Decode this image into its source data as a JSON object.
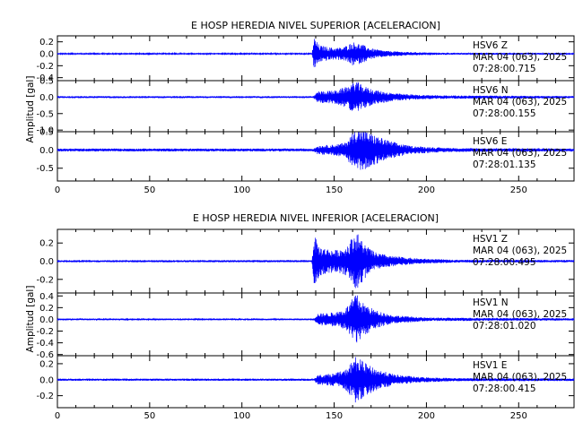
{
  "chart_data": [
    {
      "type": "line",
      "title": "E HOSP HEREDIA NIVEL SUPERIOR [ACELERACION]",
      "ylabel": "Amplitud [gal]",
      "xlabel": "",
      "xlim": [
        0,
        280
      ],
      "x_ticks": [
        0,
        50,
        100,
        150,
        200,
        250
      ],
      "grid": false,
      "color": "#0000ff",
      "series": [
        {
          "name": "HSV6 Z",
          "channel": "HSV6 Z",
          "date": "MAR 04 (063), 2025",
          "time": "07:28:00.715",
          "ylim": [
            -0.45,
            0.3
          ],
          "y_ticks": [
            0.2,
            0.0,
            -0.2,
            -0.4
          ],
          "y_tick_labels": [
            "0.2",
            "0.0",
            "-0.2",
            "-0.4"
          ],
          "noise": 0.012,
          "envelope": [
            [
              0,
              0.012
            ],
            [
              138,
              0.012
            ],
            [
              139,
              0.28
            ],
            [
              142,
              0.14
            ],
            [
              150,
              0.1
            ],
            [
              155,
              0.11
            ],
            [
              160,
              0.2
            ],
            [
              164,
              0.17
            ],
            [
              170,
              0.09
            ],
            [
              178,
              0.05
            ],
            [
              190,
              0.03
            ],
            [
              210,
              0.016
            ],
            [
              280,
              0.013
            ]
          ]
        },
        {
          "name": "HSV6 N",
          "channel": "HSV6 N",
          "date": "MAR 04 (063), 2025",
          "time": "07:28:00.155",
          "ylim": [
            -1.05,
            0.5
          ],
          "y_ticks": [
            0.5,
            0.0,
            -0.5,
            -1.0
          ],
          "y_tick_labels": [
            "0.5",
            "0.0",
            "-0.5",
            "-1.0"
          ],
          "noise": 0.03,
          "envelope": [
            [
              0,
              0.03
            ],
            [
              139,
              0.03
            ],
            [
              141,
              0.18
            ],
            [
              150,
              0.2
            ],
            [
              156,
              0.3
            ],
            [
              162,
              0.5
            ],
            [
              165,
              0.36
            ],
            [
              172,
              0.22
            ],
            [
              182,
              0.12
            ],
            [
              195,
              0.07
            ],
            [
              215,
              0.05
            ],
            [
              280,
              0.035
            ]
          ]
        },
        {
          "name": "HSV6 E",
          "channel": "HSV6 E",
          "date": "MAR 04 (063), 2025",
          "time": "07:28:01.135",
          "ylim": [
            -0.85,
            0.5
          ],
          "y_ticks": [
            0.5,
            0.0,
            -0.5
          ],
          "y_tick_labels": [
            "0.5",
            "0.0",
            "-0.5"
          ],
          "noise": 0.04,
          "envelope": [
            [
              0,
              0.04
            ],
            [
              139,
              0.04
            ],
            [
              141,
              0.12
            ],
            [
              150,
              0.15
            ],
            [
              156,
              0.2
            ],
            [
              162,
              0.6
            ],
            [
              166,
              0.55
            ],
            [
              172,
              0.4
            ],
            [
              180,
              0.25
            ],
            [
              190,
              0.12
            ],
            [
              205,
              0.07
            ],
            [
              220,
              0.05
            ],
            [
              280,
              0.045
            ]
          ]
        }
      ]
    },
    {
      "type": "line",
      "title": "E HOSP HEREDIA NIVEL INFERIOR [ACELERACION]",
      "ylabel": "Amplitud [gal]",
      "xlabel": "",
      "xlim": [
        0,
        280
      ],
      "x_ticks": [
        0,
        50,
        100,
        150,
        200,
        250
      ],
      "grid": false,
      "color": "#0000ff",
      "series": [
        {
          "name": "HSV1 Z",
          "channel": "HSV1 Z",
          "date": "MAR 04 (063), 2025",
          "time": "07:28:00.495",
          "ylim": [
            -0.35,
            0.35
          ],
          "y_ticks": [
            0.2,
            0.0,
            -0.2
          ],
          "y_tick_labels": [
            "0.2",
            "0.0",
            "-0.2"
          ],
          "noise": 0.012,
          "envelope": [
            [
              0,
              0.012
            ],
            [
              138,
              0.012
            ],
            [
              139,
              0.3
            ],
            [
              142,
              0.16
            ],
            [
              150,
              0.12
            ],
            [
              156,
              0.15
            ],
            [
              162,
              0.33
            ],
            [
              166,
              0.2
            ],
            [
              172,
              0.1
            ],
            [
              180,
              0.06
            ],
            [
              195,
              0.03
            ],
            [
              215,
              0.016
            ],
            [
              280,
              0.013
            ]
          ]
        },
        {
          "name": "HSV1 N",
          "channel": "HSV1 N",
          "date": "MAR 04 (063), 2025",
          "time": "07:28:01.020",
          "ylim": [
            -0.62,
            0.45
          ],
          "y_ticks": [
            0.4,
            0.2,
            0.0,
            -0.2,
            -0.4,
            -0.6
          ],
          "y_tick_labels": [
            "0.4",
            "0.2",
            "0.0",
            "-0.2",
            "-0.4",
            "-0.6"
          ],
          "noise": 0.015,
          "envelope": [
            [
              0,
              0.015
            ],
            [
              139,
              0.015
            ],
            [
              141,
              0.1
            ],
            [
              150,
              0.12
            ],
            [
              156,
              0.18
            ],
            [
              162,
              0.45
            ],
            [
              165,
              0.3
            ],
            [
              172,
              0.16
            ],
            [
              182,
              0.07
            ],
            [
              200,
              0.03
            ],
            [
              280,
              0.02
            ]
          ]
        },
        {
          "name": "HSV1 E",
          "channel": "HSV1 E",
          "date": "MAR 04 (063), 2025",
          "time": "07:28:00.415",
          "ylim": [
            -0.35,
            0.3
          ],
          "y_ticks": [
            0.2,
            0.0,
            -0.2
          ],
          "y_tick_labels": [
            "0.2",
            "0.0",
            "-0.2"
          ],
          "noise": 0.014,
          "envelope": [
            [
              0,
              0.014
            ],
            [
              139,
              0.014
            ],
            [
              141,
              0.06
            ],
            [
              150,
              0.08
            ],
            [
              156,
              0.12
            ],
            [
              162,
              0.3
            ],
            [
              166,
              0.22
            ],
            [
              172,
              0.14
            ],
            [
              182,
              0.07
            ],
            [
              195,
              0.035
            ],
            [
              215,
              0.02
            ],
            [
              280,
              0.016
            ]
          ]
        }
      ]
    }
  ]
}
